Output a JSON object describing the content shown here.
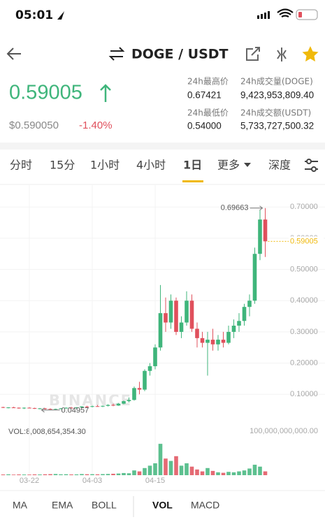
{
  "status_bar": {
    "time": "05:01"
  },
  "header": {
    "pair": "DOGE / USDT"
  },
  "ticker": {
    "price": "0.59005",
    "fiat": "$0.590050",
    "change": "-1.40%"
  },
  "stats": [
    {
      "label": "24h最高价",
      "value": "0.67421"
    },
    {
      "label": "24h成交量(DOGE)",
      "value": "9,423,953,809.40"
    },
    {
      "label": "24h最低价",
      "value": "0.54000"
    },
    {
      "label": "24h成交额(USDT)",
      "value": "5,733,727,500.32"
    }
  ],
  "tabs": [
    "分时",
    "15分",
    "1小时",
    "4小时",
    "1日",
    "更多",
    "深度"
  ],
  "chart_data": {
    "type": "candlestick",
    "watermark": "BINANCE",
    "categories": [
      null,
      null,
      null,
      null,
      null,
      null,
      "03-22",
      null,
      null,
      null,
      null,
      null,
      null,
      null,
      null,
      null,
      null,
      null,
      "04-03",
      null,
      null,
      null,
      null,
      null,
      null,
      null,
      null,
      null,
      null,
      null,
      "04-15",
      null,
      null,
      null,
      null,
      null,
      null,
      null,
      null,
      null,
      null,
      null,
      null,
      null,
      null,
      null,
      null,
      null,
      null,
      null,
      null,
      null
    ],
    "open": [
      0.058,
      0.059,
      0.057,
      0.058,
      0.057,
      0.056,
      0.057,
      0.056,
      0.054,
      0.055,
      0.053,
      0.052,
      0.053,
      0.055,
      0.057,
      0.056,
      0.058,
      0.061,
      0.06,
      0.062,
      0.061,
      0.063,
      0.066,
      0.064,
      0.07,
      0.078,
      0.082,
      0.12,
      0.115,
      0.175,
      0.19,
      0.25,
      0.36,
      0.33,
      0.4,
      0.3,
      0.33,
      0.4,
      0.31,
      0.28,
      0.265,
      0.275,
      0.26,
      0.275,
      0.265,
      0.3,
      0.32,
      0.335,
      0.38,
      0.4,
      0.55,
      0.66
    ],
    "high": [
      0.061,
      0.06,
      0.059,
      0.06,
      0.058,
      0.058,
      0.059,
      0.057,
      0.056,
      0.056,
      0.055,
      0.054,
      0.056,
      0.058,
      0.06,
      0.059,
      0.062,
      0.063,
      0.064,
      0.066,
      0.064,
      0.068,
      0.07,
      0.072,
      0.08,
      0.09,
      0.125,
      0.14,
      0.18,
      0.2,
      0.26,
      0.45,
      0.41,
      0.42,
      0.41,
      0.35,
      0.43,
      0.42,
      0.33,
      0.3,
      0.3,
      0.31,
      0.29,
      0.3,
      0.32,
      0.34,
      0.36,
      0.39,
      0.42,
      0.57,
      0.69,
      0.69663
    ],
    "low": [
      0.056,
      0.056,
      0.055,
      0.056,
      0.054,
      0.053,
      0.055,
      0.053,
      0.052,
      0.051,
      0.05,
      0.04957,
      0.052,
      0.054,
      0.055,
      0.054,
      0.056,
      0.058,
      0.058,
      0.06,
      0.059,
      0.061,
      0.062,
      0.063,
      0.068,
      0.074,
      0.08,
      0.1,
      0.11,
      0.16,
      0.18,
      0.24,
      0.3,
      0.31,
      0.29,
      0.28,
      0.32,
      0.3,
      0.25,
      0.25,
      0.16,
      0.24,
      0.24,
      0.25,
      0.26,
      0.28,
      0.3,
      0.32,
      0.35,
      0.39,
      0.53,
      0.54
    ],
    "close": [
      0.059,
      0.057,
      0.058,
      0.057,
      0.056,
      0.057,
      0.056,
      0.054,
      0.055,
      0.053,
      0.052,
      0.053,
      0.055,
      0.057,
      0.056,
      0.058,
      0.061,
      0.06,
      0.062,
      0.061,
      0.063,
      0.066,
      0.064,
      0.07,
      0.078,
      0.082,
      0.12,
      0.115,
      0.175,
      0.19,
      0.25,
      0.36,
      0.33,
      0.4,
      0.3,
      0.33,
      0.4,
      0.31,
      0.28,
      0.265,
      0.275,
      0.26,
      0.275,
      0.265,
      0.3,
      0.32,
      0.335,
      0.38,
      0.4,
      0.55,
      0.66,
      0.59005
    ],
    "volume": [
      2000000000,
      1500000000,
      1800000000,
      1200000000,
      1600000000,
      1400000000,
      1300000000,
      1700000000,
      1500000000,
      1900000000,
      2200000000,
      2500000000,
      1800000000,
      2000000000,
      1600000000,
      1700000000,
      2400000000,
      2000000000,
      2100000000,
      1800000000,
      2300000000,
      2600000000,
      3000000000,
      3500000000,
      4500000000,
      4000000000,
      10000000000,
      8000000000,
      15000000000,
      20000000000,
      25000000000,
      66000000000,
      35000000000,
      30000000000,
      40000000000,
      20000000000,
      25000000000,
      18000000000,
      12000000000,
      8000000000,
      15000000000,
      9000000000,
      6000000000,
      5000000000,
      7000000000,
      6000000000,
      8000000000,
      10000000000,
      14000000000,
      22000000000,
      18000000000,
      8008654354.3
    ],
    "volume_label": "VOL:8,008,654,354.30",
    "up_color": "#3fb57b",
    "down_color": "#e0505c",
    "last_price_color": "#f0b90b",
    "ylim": [
      0.02,
      0.77
    ],
    "yticks": [
      {
        "value": 0.1,
        "label": "0.10000"
      },
      {
        "value": 0.2,
        "label": "0.20000"
      },
      {
        "value": 0.3,
        "label": "0.30000"
      },
      {
        "value": 0.4,
        "label": "0.40000"
      },
      {
        "value": 0.5,
        "label": "0.50000"
      },
      {
        "value": 0.6,
        "label": "0.60000"
      },
      {
        "value": 0.7,
        "label": "0.70000"
      }
    ],
    "volume_ylim": [
      0,
      100000000000
    ],
    "volume_yticks": [
      {
        "value": 100000000000,
        "label": "100,000,000,000.00"
      }
    ],
    "grid": true
  },
  "indicators": [
    "MA",
    "EMA",
    "BOLL",
    "VOL",
    "MACD"
  ]
}
